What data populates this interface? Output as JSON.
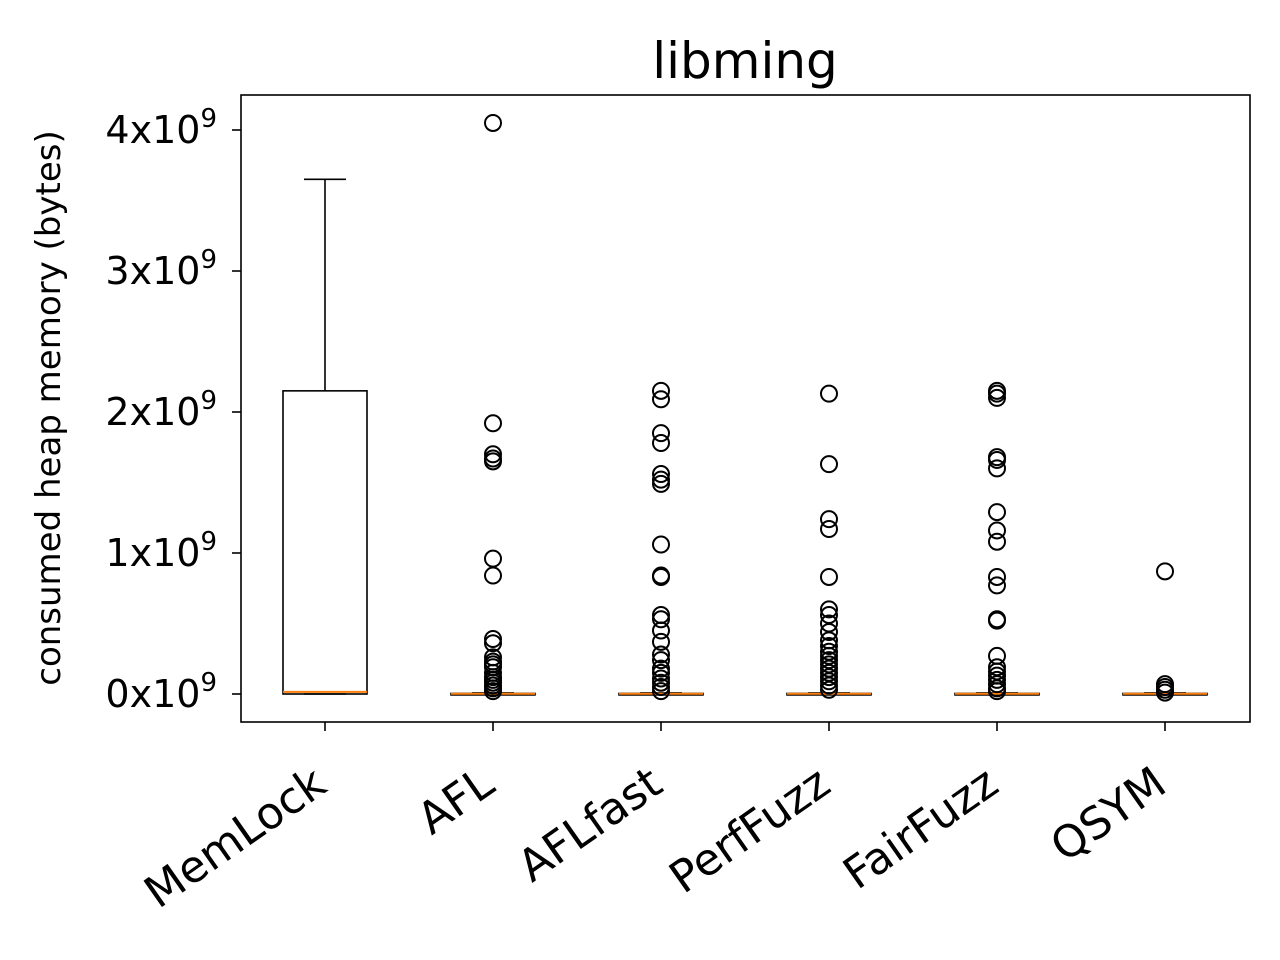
{
  "chart_data": {
    "type": "box",
    "title": "libming",
    "xlabel": "",
    "ylabel": "consumed heap memory (bytes)",
    "y_unit_base": "x10",
    "y_unit_exp": "9",
    "ylim": [
      -0.2,
      4.25
    ],
    "yticks": [
      0,
      1,
      2,
      3,
      4
    ],
    "categories": [
      "MemLock",
      "AFL",
      "AFLfast",
      "PerfFuzz",
      "FairFuzz",
      "QSYM"
    ],
    "boxes": [
      {
        "name": "MemLock",
        "whisker_low": 0.0,
        "q1": 0.0,
        "median": 0.015,
        "q3": 2.15,
        "whisker_high": 3.65,
        "outliers": []
      },
      {
        "name": "AFL",
        "whisker_low": 0.0,
        "q1": 0.0,
        "median": 0.002,
        "q3": 0.004,
        "whisker_high": 0.008,
        "outliers": [
          4.05,
          1.92,
          1.7,
          1.67,
          1.65,
          0.96,
          0.84,
          0.39,
          0.36,
          0.26,
          0.23,
          0.21,
          0.19,
          0.15,
          0.12,
          0.1,
          0.08,
          0.06,
          0.04,
          0.02
        ]
      },
      {
        "name": "AFLfast",
        "whisker_low": 0.0,
        "q1": 0.0,
        "median": 0.002,
        "q3": 0.004,
        "whisker_high": 0.008,
        "outliers": [
          2.15,
          2.09,
          1.85,
          1.78,
          1.56,
          1.52,
          1.49,
          1.06,
          0.84,
          0.83,
          0.56,
          0.53,
          0.45,
          0.37,
          0.28,
          0.24,
          0.18,
          0.15,
          0.11,
          0.08,
          0.05,
          0.02
        ]
      },
      {
        "name": "PerfFuzz",
        "whisker_low": 0.0,
        "q1": 0.0,
        "median": 0.002,
        "q3": 0.004,
        "whisker_high": 0.008,
        "outliers": [
          2.13,
          1.63,
          1.24,
          1.17,
          0.83,
          0.6,
          0.56,
          0.5,
          0.44,
          0.38,
          0.34,
          0.3,
          0.27,
          0.24,
          0.21,
          0.18,
          0.15,
          0.12,
          0.09,
          0.06,
          0.03
        ]
      },
      {
        "name": "FairFuzz",
        "whisker_low": 0.0,
        "q1": 0.0,
        "median": 0.002,
        "q3": 0.004,
        "whisker_high": 0.008,
        "outliers": [
          2.15,
          2.13,
          2.1,
          1.68,
          1.66,
          1.6,
          1.29,
          1.16,
          1.08,
          0.83,
          0.77,
          0.53,
          0.52,
          0.27,
          0.19,
          0.16,
          0.13,
          0.1,
          0.07,
          0.04,
          0.02
        ]
      },
      {
        "name": "QSYM",
        "whisker_low": 0.0,
        "q1": 0.0,
        "median": 0.002,
        "q3": 0.004,
        "whisker_high": 0.008,
        "outliers": [
          0.87,
          0.07,
          0.05,
          0.03,
          0.01
        ]
      }
    ],
    "colors": {
      "box": "#000000",
      "median": "#ff7f0e",
      "outlier_edge": "#000000",
      "background": "#ffffff"
    },
    "grid": false,
    "legend": "none"
  }
}
